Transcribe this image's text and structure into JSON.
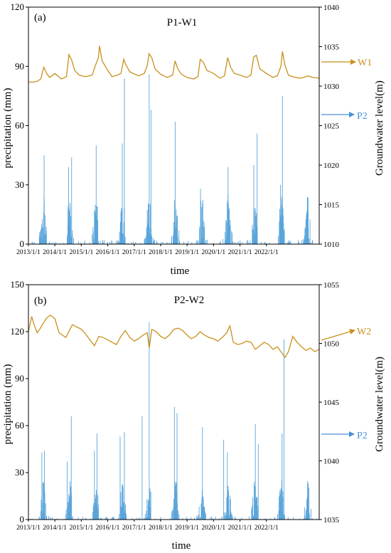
{
  "chart_data": [
    {
      "type": "bar",
      "panel_label": "(a)",
      "title": "P1-W1",
      "xlabel": "time",
      "ylabel": "precipitation (mm)",
      "y2label": "Groundwater level(m)",
      "ylim": [
        0,
        120
      ],
      "yticks": [
        0,
        30,
        60,
        90,
        120
      ],
      "y2lim": [
        1010,
        1040
      ],
      "y2ticks": [
        1010,
        1015,
        1020,
        1025,
        1030,
        1035,
        1040
      ],
      "xlim": [
        "2013/1/1",
        "2023/12/31"
      ],
      "xticks": [
        "2013/1/1",
        "2014/1/1",
        "2015/1/1",
        "2016/1/1",
        "2017/1/1",
        "2018/1/1",
        "2019/1/1",
        "2020/1/1",
        "2021/1/1",
        "2022/1/1"
      ],
      "series": [
        {
          "name": "P2",
          "kind": "bar",
          "axis": "left",
          "color": "#5aa5db",
          "note_peaks": [
            {
              "date": "2013/8/5",
              "value": 45
            },
            {
              "date": "2014/7/10",
              "value": 39
            },
            {
              "date": "2014/8/20",
              "value": 44
            },
            {
              "date": "2015/7/25",
              "value": 50
            },
            {
              "date": "2016/7/20",
              "value": 51
            },
            {
              "date": "2016/8/18",
              "value": 84
            },
            {
              "date": "2017/7/27",
              "value": 86
            },
            {
              "date": "2017/8/20",
              "value": 68
            },
            {
              "date": "2018/7/20",
              "value": 62
            },
            {
              "date": "2019/7/5",
              "value": 28
            },
            {
              "date": "2020/7/20",
              "value": 39
            },
            {
              "date": "2021/7/10",
              "value": 40
            },
            {
              "date": "2021/8/25",
              "value": 56
            },
            {
              "date": "2022/7/15",
              "value": 30
            },
            {
              "date": "2022/8/10",
              "value": 75
            }
          ]
        },
        {
          "name": "W1",
          "kind": "line",
          "axis": "right",
          "color": "#c8901c",
          "x": [
            "2013/1/1",
            "2013/3/1",
            "2013/5/1",
            "2013/6/20",
            "2013/8/1",
            "2013/9/10",
            "2013/10/20",
            "2014/1/1",
            "2014/4/1",
            "2014/6/10",
            "2014/7/15",
            "2014/8/25",
            "2014/10/1",
            "2014/12/1",
            "2015/3/1",
            "2015/6/1",
            "2015/7/10",
            "2015/8/25",
            "2015/9/10",
            "2015/10/15",
            "2016/1/1",
            "2016/3/1",
            "2016/5/15",
            "2016/7/1",
            "2016/8/10",
            "2016/9/1",
            "2016/11/1",
            "2017/3/1",
            "2017/5/20",
            "2017/7/1",
            "2017/7/25",
            "2017/9/1",
            "2017/10/15",
            "2018/1/1",
            "2018/4/1",
            "2018/6/15",
            "2018/7/20",
            "2018/8/25",
            "2018/10/15",
            "2019/1/1",
            "2019/4/1",
            "2019/6/1",
            "2019/7/1",
            "2019/8/15",
            "2019/10/1",
            "2020/1/1",
            "2020/4/1",
            "2020/6/1",
            "2020/7/15",
            "2020/8/25",
            "2020/10/15",
            "2021/1/1",
            "2021/4/1",
            "2021/6/1",
            "2021/7/10",
            "2021/8/15",
            "2021/10/1",
            "2022/1/1",
            "2022/4/1",
            "2022/6/1",
            "2022/7/20",
            "2022/8/10",
            "2022/9/15",
            "2022/11/1",
            "2023/1/1",
            "2023/4/1",
            "2023/6/1",
            "2023/8/1",
            "2023/10/1",
            "2023/12/31"
          ],
          "y": [
            1030.5,
            1030.5,
            1030.6,
            1030.9,
            1032.4,
            1031.6,
            1031.1,
            1031.6,
            1030.9,
            1031.2,
            1034.0,
            1033.2,
            1032.0,
            1031.4,
            1031.2,
            1031.4,
            1032.5,
            1033.6,
            1035.1,
            1033.2,
            1032.0,
            1031.2,
            1031.4,
            1031.6,
            1033.4,
            1032.8,
            1031.8,
            1031.3,
            1031.6,
            1032.6,
            1034.1,
            1033.6,
            1032.2,
            1031.5,
            1031.1,
            1031.4,
            1033.2,
            1032.2,
            1031.5,
            1031.1,
            1030.9,
            1031.2,
            1033.4,
            1033.0,
            1032.0,
            1031.6,
            1031.0,
            1031.3,
            1033.6,
            1032.4,
            1031.6,
            1031.4,
            1031.1,
            1031.4,
            1033.7,
            1033.9,
            1032.2,
            1031.6,
            1031.1,
            1031.3,
            1032.5,
            1034.4,
            1032.6,
            1031.4,
            1031.2,
            1031.0,
            1031.1,
            1031.3,
            1031.1,
            1031.0
          ]
        }
      ],
      "annotations": [
        {
          "text": "W1",
          "color": "#c8901c",
          "points_to": "W1 line"
        },
        {
          "text": "P2",
          "color": "#4a90d9",
          "points_to": "precipitation bars"
        }
      ]
    },
    {
      "type": "bar",
      "panel_label": "(b)",
      "title": "P2-W2",
      "xlabel": "time",
      "ylabel": "precipitation (mm)",
      "y2label": "Groundwater level(m)",
      "ylim": [
        0,
        150
      ],
      "yticks": [
        0,
        30,
        60,
        90,
        120,
        150
      ],
      "y2lim": [
        1035,
        1055
      ],
      "y2ticks": [
        1035,
        1040,
        1045,
        1050,
        1055
      ],
      "xlim": [
        "2013/1/1",
        "2023/12/31"
      ],
      "xticks": [
        "2013/1/1",
        "2014/1/1",
        "2015/1/1",
        "2016/1/1",
        "2017/1/1",
        "2018/1/1",
        "2019/1/1",
        "2020/1/1",
        "2021/1/1",
        "2022/1/1"
      ],
      "series": [
        {
          "name": "P2",
          "kind": "bar",
          "axis": "left",
          "color": "#5aa5db",
          "note_peaks": [
            {
              "date": "2013/7/5",
              "value": 43
            },
            {
              "date": "2013/8/10",
              "value": 44
            },
            {
              "date": "2014/6/20",
              "value": 37
            },
            {
              "date": "2014/8/15",
              "value": 66
            },
            {
              "date": "2015/7/1",
              "value": 44
            },
            {
              "date": "2015/8/5",
              "value": 55
            },
            {
              "date": "2016/6/20",
              "value": 53
            },
            {
              "date": "2016/8/18",
              "value": 56
            },
            {
              "date": "2017/4/20",
              "value": 66
            },
            {
              "date": "2017/7/27",
              "value": 126
            },
            {
              "date": "2018/7/10",
              "value": 72
            },
            {
              "date": "2018/8/15",
              "value": 68
            },
            {
              "date": "2019/8/1",
              "value": 59
            },
            {
              "date": "2020/5/20",
              "value": 51
            },
            {
              "date": "2020/7/10",
              "value": 43
            },
            {
              "date": "2021/8/1",
              "value": 61
            },
            {
              "date": "2021/9/10",
              "value": 48
            },
            {
              "date": "2022/8/5",
              "value": 55
            },
            {
              "date": "2022/9/1",
              "value": 115
            }
          ]
        },
        {
          "name": "W2",
          "kind": "line",
          "axis": "right",
          "color": "#c8901c",
          "x": [
            "2013/1/1",
            "2013/2/15",
            "2013/3/20",
            "2013/5/1",
            "2013/6/15",
            "2013/8/1",
            "2013/9/15",
            "2013/11/1",
            "2014/1/1",
            "2014/3/1",
            "2014/4/15",
            "2014/6/1",
            "2014/7/20",
            "2014/9/1",
            "2014/11/1",
            "2015/1/1",
            "2015/3/1",
            "2015/5/1",
            "2015/7/1",
            "2015/9/1",
            "2015/11/1",
            "2016/1/1",
            "2016/3/1",
            "2016/5/1",
            "2016/7/1",
            "2016/9/1",
            "2016/11/1",
            "2017/1/1",
            "2017/3/1",
            "2017/5/1",
            "2017/7/1",
            "2017/7/27",
            "2017/9/1",
            "2017/11/1",
            "2018/1/1",
            "2018/3/1",
            "2018/5/1",
            "2018/7/1",
            "2018/9/1",
            "2018/11/1",
            "2019/1/1",
            "2019/3/1",
            "2019/5/1",
            "2019/7/1",
            "2019/9/1",
            "2019/11/1",
            "2020/1/1",
            "2020/3/1",
            "2020/5/1",
            "2020/7/1",
            "2020/8/15",
            "2020/10/1",
            "2020/12/1",
            "2021/2/1",
            "2021/4/1",
            "2021/6/1",
            "2021/8/1",
            "2021/10/1",
            "2021/12/1",
            "2022/2/1",
            "2022/4/1",
            "2022/6/1",
            "2022/8/1",
            "2022/9/15",
            "2022/11/1",
            "2023/1/1",
            "2023/3/1",
            "2023/5/1",
            "2023/7/1",
            "2023/9/1",
            "2023/11/1",
            "2023/12/31"
          ],
          "y": [
            1051.0,
            1052.3,
            1051.6,
            1050.9,
            1051.3,
            1051.8,
            1052.2,
            1052.4,
            1052.1,
            1050.9,
            1050.7,
            1050.5,
            1051.1,
            1051.6,
            1051.4,
            1051.2,
            1050.8,
            1050.3,
            1049.8,
            1050.6,
            1050.5,
            1050.3,
            1050.1,
            1049.9,
            1050.6,
            1051.1,
            1050.5,
            1050.2,
            1050.4,
            1050.7,
            1050.9,
            1049.6,
            1051.2,
            1051.0,
            1050.6,
            1050.4,
            1050.7,
            1051.2,
            1051.3,
            1051.1,
            1050.7,
            1050.4,
            1050.6,
            1051.0,
            1050.7,
            1050.5,
            1050.4,
            1050.2,
            1050.5,
            1050.9,
            1051.5,
            1050.1,
            1049.9,
            1050.0,
            1050.2,
            1050.1,
            1049.5,
            1049.8,
            1050.1,
            1049.9,
            1049.5,
            1049.7,
            1049.2,
            1048.8,
            1049.3,
            1050.6,
            1050.1,
            1049.7,
            1049.4,
            1049.6,
            1049.3,
            1049.5
          ]
        }
      ],
      "annotations": [
        {
          "text": "W2",
          "color": "#c8901c",
          "points_to": "W2 line"
        },
        {
          "text": "P2",
          "color": "#4a90d9",
          "points_to": "precipitation bars"
        }
      ]
    }
  ]
}
